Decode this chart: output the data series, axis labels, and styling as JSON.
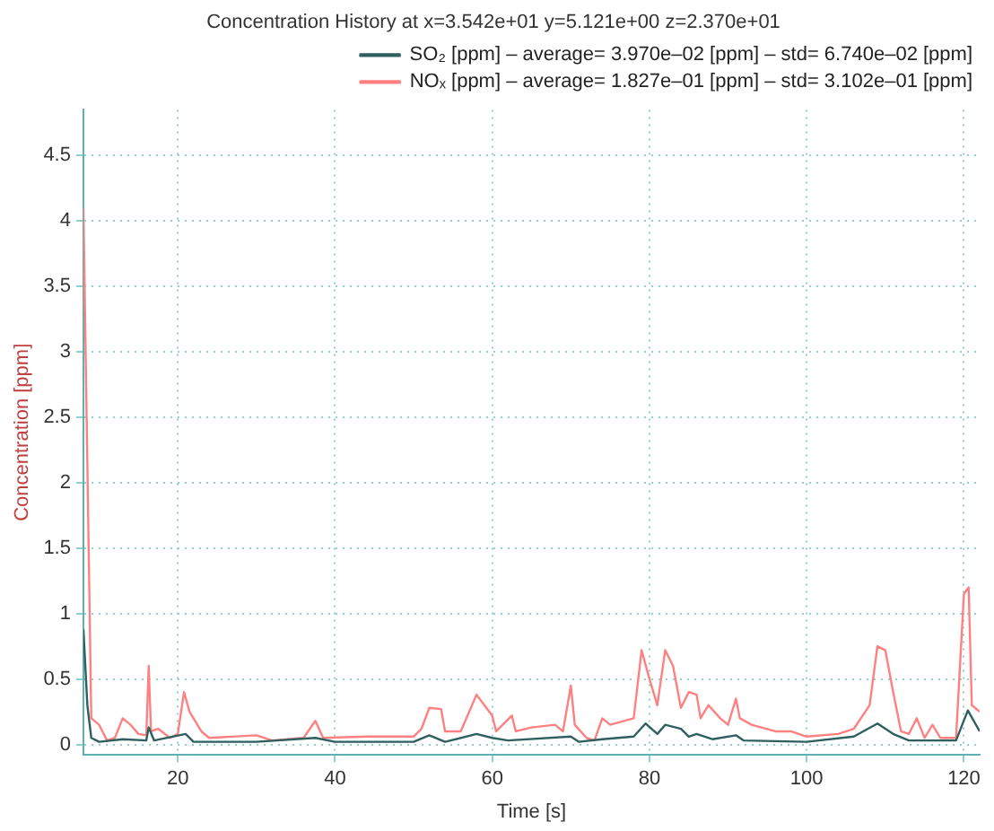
{
  "chart_data": {
    "type": "line",
    "title": "Concentration History at x=3.542e+01 y=5.121e+00 z=2.370e+01",
    "xlabel": "Time [s]",
    "ylabel": "Concentration [ppm]",
    "xlim": [
      8,
      122
    ],
    "xticks": [
      20,
      40,
      60,
      80,
      100,
      120
    ],
    "ylim": [
      -0.08,
      4.85
    ],
    "yticks": [
      0,
      0.5,
      1,
      1.5,
      2,
      2.5,
      3,
      3.5,
      4,
      4.5
    ],
    "grid": true,
    "legend": "top right",
    "marker": "none",
    "line_style": "solid",
    "series": [
      {
        "name": "SO₂ [ppm] – average= 3.970e–02 [ppm] – std= 6.740e–02 [ppm]",
        "color": "#2f5f5f",
        "x": [
          8,
          8.5,
          9,
          10,
          13,
          16,
          16.3,
          17,
          21,
          22,
          30,
          37.5,
          40,
          50,
          52,
          54,
          58,
          60,
          62,
          70,
          71,
          74,
          78,
          79.5,
          81,
          82,
          84,
          85,
          86,
          88,
          91,
          92,
          100,
          106,
          109,
          111,
          113,
          119,
          120.5,
          122
        ],
        "values": [
          0.88,
          0.3,
          0.05,
          0.02,
          0.04,
          0.03,
          0.13,
          0.03,
          0.08,
          0.02,
          0.02,
          0.05,
          0.02,
          0.02,
          0.07,
          0.02,
          0.08,
          0.05,
          0.03,
          0.06,
          0.02,
          0.04,
          0.06,
          0.16,
          0.08,
          0.15,
          0.12,
          0.06,
          0.08,
          0.04,
          0.07,
          0.03,
          0.02,
          0.06,
          0.16,
          0.08,
          0.03,
          0.03,
          0.26,
          0.1
        ]
      },
      {
        "name": "NOₓ [ppm] – average= 1.827e–01 [ppm] – std= 3.102e–01 [ppm]",
        "color": "#ff8080",
        "x": [
          8,
          9,
          10,
          11,
          12,
          13,
          14,
          15,
          16,
          16.3,
          16.6,
          17.5,
          19,
          20,
          20.8,
          21.5,
          23,
          24,
          30,
          32,
          36,
          37.5,
          38.5,
          44,
          50,
          51,
          52,
          53.5,
          54,
          56,
          58,
          59,
          60,
          60.5,
          62.5,
          63,
          65,
          68,
          69,
          70,
          70.5,
          72,
          73,
          74,
          75,
          78,
          79,
          80,
          81,
          82,
          83,
          84,
          85,
          86,
          86.5,
          87.5,
          89,
          90,
          91,
          91.5,
          93,
          96,
          98,
          100,
          104,
          106,
          108,
          109,
          110,
          111,
          112,
          113,
          114,
          115,
          116,
          117,
          119,
          120,
          120.6,
          121,
          122
        ],
        "values": [
          4.1,
          0.2,
          0.15,
          0.03,
          0.05,
          0.2,
          0.15,
          0.08,
          0.07,
          0.6,
          0.1,
          0.12,
          0.05,
          0.08,
          0.4,
          0.25,
          0.1,
          0.05,
          0.07,
          0.03,
          0.05,
          0.18,
          0.05,
          0.06,
          0.06,
          0.12,
          0.28,
          0.27,
          0.1,
          0.1,
          0.38,
          0.3,
          0.22,
          0.1,
          0.22,
          0.1,
          0.13,
          0.15,
          0.1,
          0.45,
          0.15,
          0.05,
          0.03,
          0.2,
          0.15,
          0.2,
          0.72,
          0.5,
          0.3,
          0.72,
          0.6,
          0.28,
          0.4,
          0.38,
          0.2,
          0.3,
          0.2,
          0.15,
          0.35,
          0.2,
          0.15,
          0.1,
          0.1,
          0.06,
          0.08,
          0.12,
          0.3,
          0.75,
          0.72,
          0.4,
          0.1,
          0.08,
          0.2,
          0.05,
          0.15,
          0.05,
          0.05,
          1.15,
          1.2,
          0.3,
          0.25
        ]
      }
    ]
  }
}
